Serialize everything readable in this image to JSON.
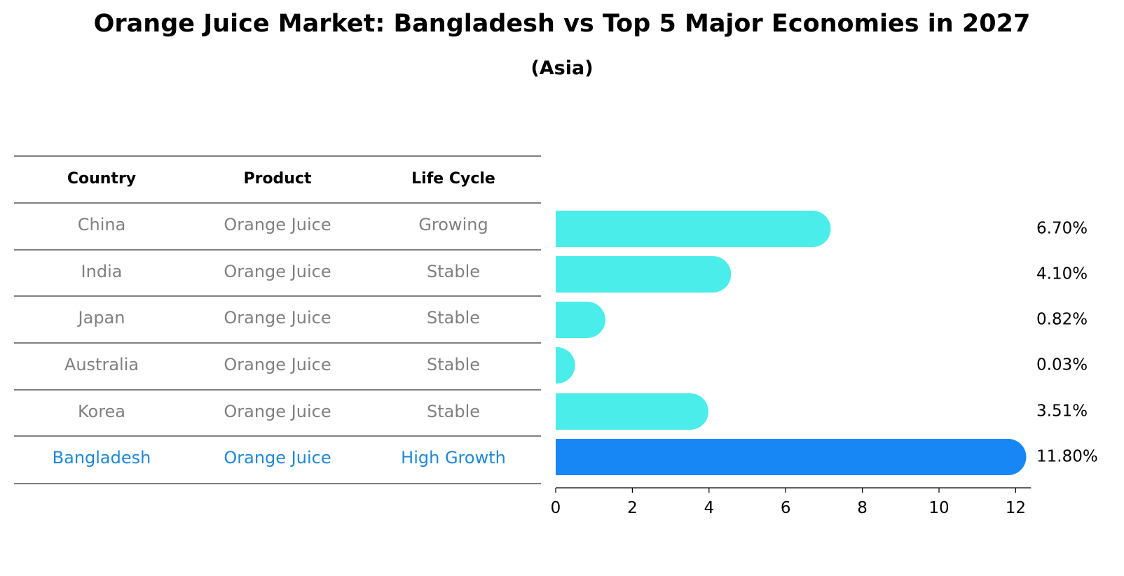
{
  "title": "Orange Juice Market: Bangladesh vs Top 5 Major Economies in 2027",
  "subtitle": "(Asia)",
  "table": {
    "headers": [
      "Country",
      "Product",
      "Life Cycle"
    ],
    "rows": [
      {
        "country": "China",
        "product": "Orange Juice",
        "life_cycle": "Growing",
        "highlight": false
      },
      {
        "country": "India",
        "product": "Orange Juice",
        "life_cycle": "Stable",
        "highlight": false
      },
      {
        "country": "Japan",
        "product": "Orange Juice",
        "life_cycle": "Stable",
        "highlight": false
      },
      {
        "country": "Australia",
        "product": "Orange Juice",
        "life_cycle": "Stable",
        "highlight": false
      },
      {
        "country": "Korea",
        "product": "Orange Juice",
        "life_cycle": "Stable",
        "highlight": false
      },
      {
        "country": "Bangladesh",
        "product": "Orange Juice",
        "life_cycle": "High Growth",
        "highlight": true
      }
    ]
  },
  "chart_data": {
    "type": "bar",
    "orientation": "horizontal",
    "categories": [
      "China",
      "India",
      "Japan",
      "Australia",
      "Korea",
      "Bangladesh"
    ],
    "values": [
      6.7,
      4.1,
      0.82,
      0.03,
      3.51,
      11.8
    ],
    "value_labels": [
      "6.70%",
      "4.10%",
      "0.82%",
      "0.03%",
      "3.51%",
      "11.80%"
    ],
    "xlim": [
      0,
      12.4
    ],
    "xticks": [
      0,
      2,
      4,
      6,
      8,
      10,
      12
    ],
    "xlabel": "",
    "ylabel": "",
    "grid": false,
    "colors": {
      "default": "#4AEDE9",
      "highlight": "#1787F5",
      "text_muted": "#808080",
      "text_highlight": "#1E88D6"
    }
  }
}
